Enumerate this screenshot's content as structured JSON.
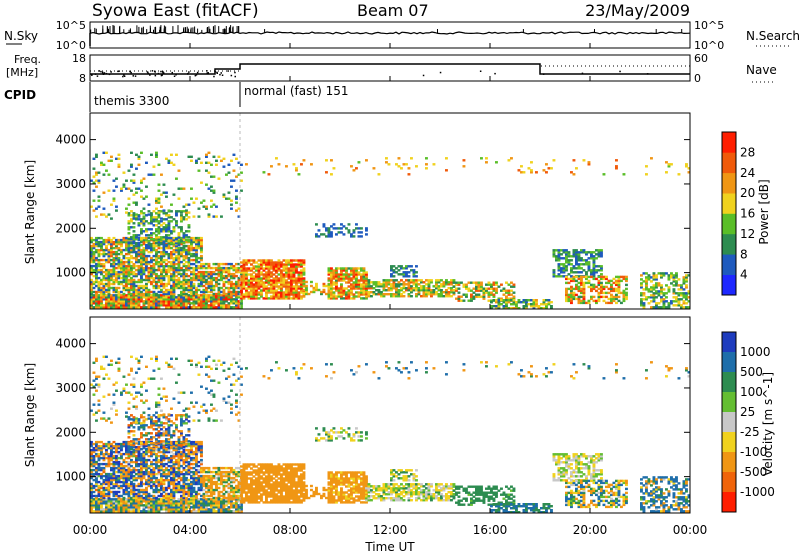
{
  "header": {
    "station": "Syowa East (fitACF)",
    "beam": "Beam 07",
    "date": "23/May/2009"
  },
  "nsky_panel": {
    "left_label": "N.Sky",
    "right_label": "N.Search",
    "tick_top": "10^5",
    "tick_bottom": "10^0"
  },
  "freq_panel": {
    "label_line1": "Freq.",
    "label_line2": "[MHz]",
    "tick_top": "18",
    "tick_bottom": "8",
    "right_label": "Nave",
    "right_tick_top": "60",
    "right_tick_bottom": "0"
  },
  "cpid_panel": {
    "label": "CPID",
    "modes": [
      {
        "name": "themis 3300",
        "start_hour": 0,
        "end_hour": 6
      },
      {
        "name": "normal (fast) 151",
        "start_hour": 6,
        "end_hour": 24
      }
    ]
  },
  "chart_data": [
    {
      "type": "heatmap",
      "name": "Power",
      "ylabel": "Slant Range [km]",
      "ylim": [
        180,
        4600
      ],
      "yticks": [
        1000,
        2000,
        3000,
        4000
      ],
      "colorbar_label": "Power [dB]",
      "colorbar_ticks": [
        "4",
        "8",
        "12",
        "16",
        "20",
        "24",
        "28"
      ],
      "colorbar_range": [
        0,
        30
      ],
      "colors": [
        "#1e28ff",
        "#1e5abe",
        "#2d8c50",
        "#5abe28",
        "#f0d21e",
        "#f09614",
        "#f05a0a",
        "#ff1e00"
      ]
    },
    {
      "type": "heatmap",
      "name": "Velocity",
      "ylabel": "Slant Range [km]",
      "ylim": [
        180,
        4600
      ],
      "yticks": [
        1000,
        2000,
        3000,
        4000
      ],
      "colorbar_label": "Velocity [m s^-1]",
      "colorbar_ticks": [
        "1000",
        "500",
        "100",
        "25",
        "-25",
        "-100",
        "-500",
        "-1000"
      ],
      "colors": [
        "#1e3cbe",
        "#1e6eaa",
        "#2d8c50",
        "#64be32",
        "#c8c8c8",
        "#f0d21e",
        "#f09614",
        "#f0640a",
        "#ff1e00"
      ]
    }
  ],
  "xaxis": {
    "label": "Time UT",
    "xlim": [
      0,
      24
    ],
    "ticks": [
      "00:00",
      "04:00",
      "08:00",
      "12:00",
      "16:00",
      "20:00",
      "00:00"
    ],
    "tick_hours": [
      0,
      4,
      8,
      12,
      16,
      20,
      24
    ]
  }
}
